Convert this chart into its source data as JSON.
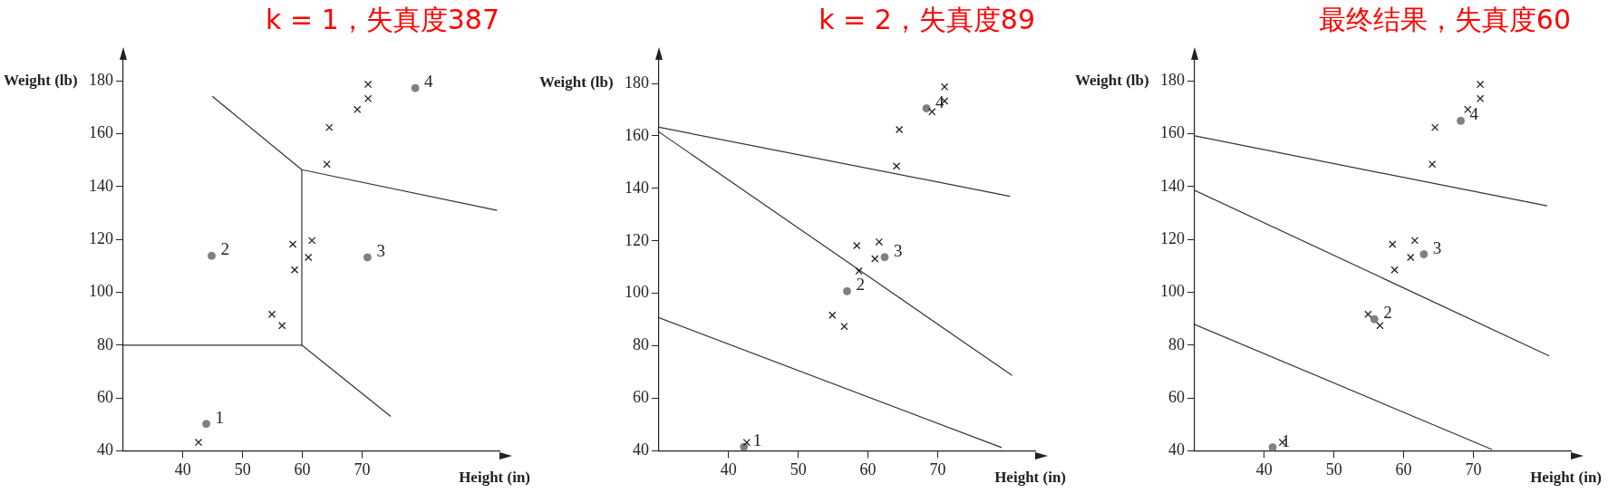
{
  "chart_data": [
    {
      "type": "scatter",
      "title": "k = 1，失真度387",
      "xlabel": "Height (in)",
      "ylabel": "Weight (lb)",
      "xlim": [
        30,
        93
      ],
      "ylim": [
        40,
        188
      ],
      "xticks": [
        40,
        50,
        60,
        70
      ],
      "yticks": [
        40,
        60,
        80,
        100,
        120,
        140,
        160,
        180
      ],
      "grid": false,
      "legend": false,
      "series": [
        {
          "type": "scatter",
          "color": "#222222",
          "marker": "cross",
          "x": [
            42.6,
            54.9,
            56.6,
            58.4,
            58.7,
            61.6,
            61.0,
            64.1,
            64.5,
            69.2,
            71.0,
            71.0
          ],
          "values": [
            43.2,
            91.7,
            87.4,
            118.2,
            108.5,
            119.6,
            113.2,
            148.5,
            162.4,
            169.2,
            173.3,
            178.7
          ]
        },
        {
          "type": "scatter",
          "color": "#808080",
          "marker": "circle",
          "x": [
            43.9,
            44.8,
            70.9,
            78.9
          ],
          "values": [
            50.2,
            113.8,
            113.2,
            177.3
          ]
        },
        {
          "type": "line",
          "color": "#333333",
          "marker": "none",
          "x": [
            44.9,
            59.9,
            92.6
          ],
          "values": [
            174.2,
            146.4,
            131.0
          ]
        },
        {
          "type": "line",
          "color": "#333333",
          "marker": "none",
          "x": [
            59.9,
            59.9
          ],
          "values": [
            146.4,
            80.0
          ]
        },
        {
          "type": "line",
          "color": "#333333",
          "marker": "none",
          "x": [
            30,
            59.9,
            74.8
          ],
          "values": [
            80.0,
            80.0,
            53.0
          ]
        }
      ],
      "annotations": [
        {
          "text": "1",
          "x": 43.9,
          "y": 50.2
        },
        {
          "text": "2",
          "x": 44.8,
          "y": 113.8
        },
        {
          "text": "3",
          "x": 70.9,
          "y": 113.2
        },
        {
          "text": "4",
          "x": 78.9,
          "y": 177.3
        }
      ]
    },
    {
      "type": "scatter",
      "title": "k = 2，失真度89",
      "xlabel": "Height (in)",
      "ylabel": "Weight (lb)",
      "xlim": [
        30,
        84
      ],
      "ylim": [
        40,
        189
      ],
      "xticks": [
        40,
        50,
        60,
        70
      ],
      "yticks": [
        40,
        60,
        80,
        100,
        120,
        140,
        160,
        180
      ],
      "grid": false,
      "legend": false,
      "series": [
        {
          "type": "scatter",
          "color": "#222222",
          "marker": "cross",
          "x": [
            42.6,
            54.9,
            56.6,
            58.4,
            58.7,
            61.6,
            61.0,
            64.1,
            64.5,
            69.2,
            71.0,
            71.0
          ],
          "values": [
            43.2,
            91.7,
            87.4,
            118.2,
            108.5,
            119.6,
            113.2,
            148.5,
            162.4,
            169.2,
            173.3,
            178.7
          ]
        },
        {
          "type": "scatter",
          "color": "#808080",
          "marker": "circle",
          "x": [
            42.2,
            57.0,
            62.4,
            68.4
          ],
          "values": [
            41.5,
            100.8,
            113.8,
            170.5
          ]
        },
        {
          "type": "line",
          "color": "#333333",
          "marker": "none",
          "x": [
            30,
            80.4
          ],
          "values": [
            163.3,
            137.0
          ]
        },
        {
          "type": "line",
          "color": "#333333",
          "marker": "none",
          "x": [
            30,
            80.7
          ],
          "values": [
            161.5,
            68.7
          ]
        },
        {
          "type": "line",
          "color": "#333333",
          "marker": "none",
          "x": [
            30,
            79.2
          ],
          "values": [
            90.7,
            41.2
          ]
        }
      ],
      "annotations": [
        {
          "text": "1",
          "x": 42.2,
          "y": 41.5
        },
        {
          "text": "2",
          "x": 57.0,
          "y": 100.8
        },
        {
          "text": "3",
          "x": 62.4,
          "y": 113.8
        },
        {
          "text": "4",
          "x": 68.4,
          "y": 170.5
        }
      ]
    },
    {
      "type": "scatter",
      "title": "最终结果，失真度60",
      "xlabel": "Height (in)",
      "ylabel": "Weight (lb)",
      "xlim": [
        30,
        84
      ],
      "ylim": [
        40,
        188
      ],
      "xticks": [
        40,
        50,
        60,
        70
      ],
      "yticks": [
        40,
        60,
        80,
        100,
        120,
        140,
        160,
        180
      ],
      "grid": false,
      "legend": false,
      "series": [
        {
          "type": "scatter",
          "color": "#222222",
          "marker": "cross",
          "x": [
            42.6,
            54.9,
            56.6,
            58.4,
            58.7,
            61.6,
            61.0,
            64.1,
            64.5,
            69.2,
            71.0,
            71.0
          ],
          "values": [
            43.2,
            91.7,
            87.4,
            118.2,
            108.5,
            119.6,
            113.2,
            148.5,
            162.4,
            169.2,
            173.3,
            178.7
          ]
        },
        {
          "type": "scatter",
          "color": "#808080",
          "marker": "circle",
          "x": [
            41.2,
            55.8,
            62.9,
            68.2
          ],
          "values": [
            41.3,
            89.8,
            114.4,
            164.9
          ]
        },
        {
          "type": "line",
          "color": "#333333",
          "marker": "none",
          "x": [
            30,
            80.6
          ],
          "values": [
            159.2,
            132.7
          ]
        },
        {
          "type": "line",
          "color": "#333333",
          "marker": "none",
          "x": [
            30,
            80.9
          ],
          "values": [
            138.6,
            75.9
          ]
        },
        {
          "type": "line",
          "color": "#333333",
          "marker": "none",
          "x": [
            30,
            72.7
          ],
          "values": [
            87.8,
            40.5
          ]
        }
      ],
      "annotations": [
        {
          "text": "1",
          "x": 41.2,
          "y": 41.3
        },
        {
          "text": "2",
          "x": 55.8,
          "y": 89.8
        },
        {
          "text": "3",
          "x": 62.9,
          "y": 114.4
        },
        {
          "text": "4",
          "x": 68.2,
          "y": 164.9
        }
      ]
    }
  ]
}
